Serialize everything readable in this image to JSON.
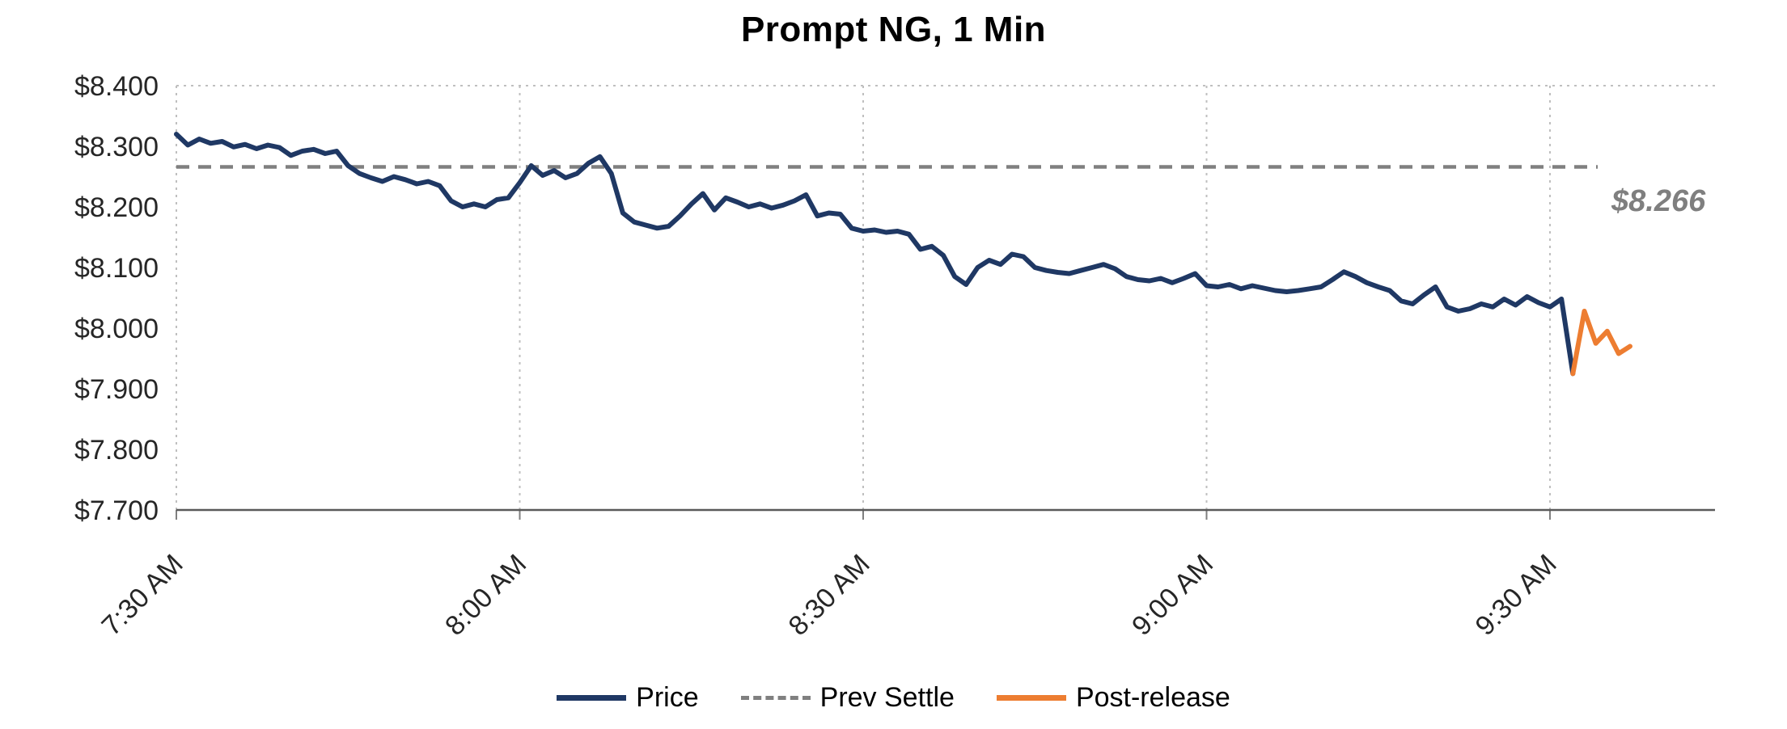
{
  "title": "Prompt NG, 1 Min",
  "annotation": {
    "text": "$8.266",
    "color": "#7f7f7f"
  },
  "legend": {
    "items": [
      "Price",
      "Prev Settle",
      "Post-release"
    ]
  },
  "chart_data": {
    "type": "line",
    "title": "Prompt NG, 1 Min",
    "xlabel": "",
    "ylabel": "",
    "ylim": [
      7.7,
      8.4
    ],
    "grid": "vertical dotted at 30-min ticks, dotted top border, solid bottom axis",
    "legend_position": "bottom center",
    "x_unit": "minutes since 7:30 AM (1-minute bars)",
    "x_tick_minutes": [
      0,
      30,
      60,
      90,
      120
    ],
    "x_tick_labels": [
      "7:30 AM",
      "8:00 AM",
      "8:30 AM",
      "9:00 AM",
      "9:30 AM"
    ],
    "y_tick_values": [
      8.4,
      8.3,
      8.2,
      8.1,
      8.0,
      7.9,
      7.8,
      7.7
    ],
    "y_tick_labels": [
      "$8.400",
      "$8.300",
      "$8.200",
      "$8.100",
      "$8.000",
      "$7.900",
      "$7.800",
      "$7.700"
    ],
    "prev_settle": 8.266,
    "series": [
      {
        "name": "Price",
        "color": "#1f3864",
        "style": "solid",
        "start_minute": 0,
        "values": [
          8.32,
          8.302,
          8.312,
          8.305,
          8.308,
          8.299,
          8.303,
          8.296,
          8.302,
          8.298,
          8.285,
          8.292,
          8.295,
          8.288,
          8.292,
          8.268,
          8.255,
          8.248,
          8.242,
          8.25,
          8.245,
          8.238,
          8.242,
          8.235,
          8.21,
          8.2,
          8.205,
          8.2,
          8.212,
          8.215,
          8.24,
          8.268,
          8.252,
          8.26,
          8.248,
          8.255,
          8.272,
          8.283,
          8.255,
          8.19,
          8.175,
          8.17,
          8.165,
          8.168,
          8.185,
          8.205,
          8.222,
          8.195,
          8.215,
          8.208,
          8.2,
          8.205,
          8.198,
          8.203,
          8.21,
          8.22,
          8.185,
          8.19,
          8.188,
          8.165,
          8.16,
          8.162,
          8.158,
          8.16,
          8.155,
          8.13,
          8.135,
          8.12,
          8.085,
          8.072,
          8.1,
          8.112,
          8.105,
          8.122,
          8.118,
          8.1,
          8.095,
          8.092,
          8.09,
          8.095,
          8.1,
          8.105,
          8.098,
          8.085,
          8.08,
          8.078,
          8.082,
          8.075,
          8.082,
          8.09,
          8.07,
          8.068,
          8.072,
          8.065,
          8.07,
          8.066,
          8.062,
          8.06,
          8.062,
          8.065,
          8.068,
          8.08,
          8.093,
          8.085,
          8.075,
          8.068,
          8.062,
          8.045,
          8.04,
          8.055,
          8.068,
          8.035,
          8.028,
          8.032,
          8.04,
          8.035,
          8.048,
          8.038,
          8.052,
          8.042,
          8.035,
          8.048,
          7.925
        ]
      },
      {
        "name": "Prev Settle",
        "color": "#808080",
        "style": "dashed",
        "value": 8.266
      },
      {
        "name": "Post-release",
        "color": "#ed7d31",
        "style": "solid",
        "start_minute": 122,
        "values": [
          7.925,
          8.028,
          7.975,
          7.995,
          7.958,
          7.97
        ]
      }
    ]
  }
}
